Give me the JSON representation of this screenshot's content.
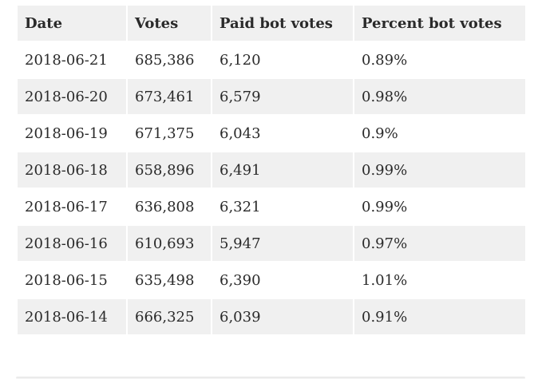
{
  "table": {
    "headers": [
      "Date",
      "Votes",
      "Paid bot votes",
      "Percent bot votes"
    ],
    "rows": [
      [
        "2018-06-21",
        "685,386",
        "6,120",
        "0.89%"
      ],
      [
        "2018-06-20",
        "673,461",
        "6,579",
        "0.98%"
      ],
      [
        "2018-06-19",
        "671,375",
        "6,043",
        "0.9%"
      ],
      [
        "2018-06-18",
        "658,896",
        "6,491",
        "0.99%"
      ],
      [
        "2018-06-17",
        "636,808",
        "6,321",
        "0.99%"
      ],
      [
        "2018-06-16",
        "610,693",
        "5,947",
        "0.97%"
      ],
      [
        "2018-06-15",
        "635,498",
        "6,390",
        "1.01%"
      ],
      [
        "2018-06-14",
        "666,325",
        "6,039",
        "0.91%"
      ]
    ]
  }
}
